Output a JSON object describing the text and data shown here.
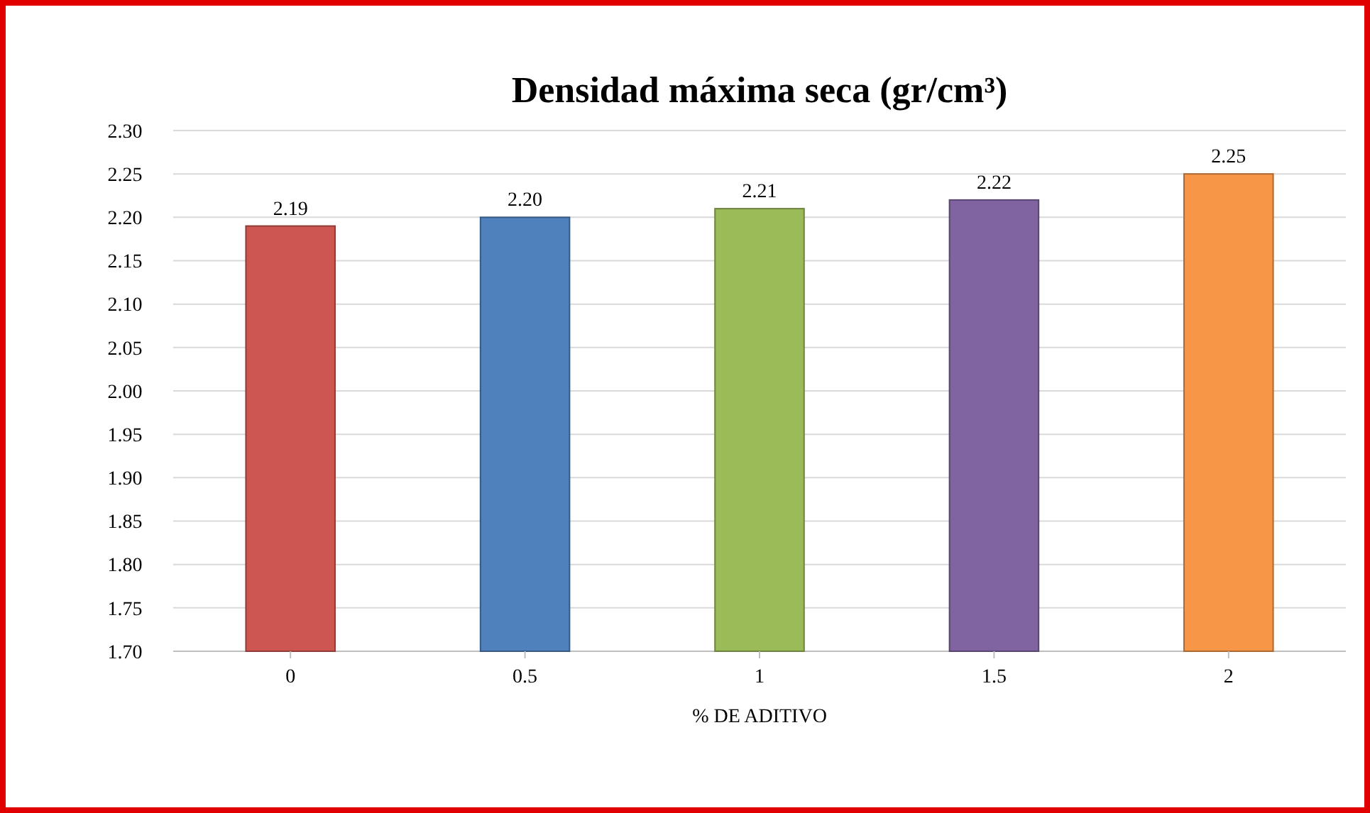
{
  "chart_data": {
    "type": "bar",
    "title": "Densidad máxima seca (gr/cm³)",
    "xlabel": "% DE ADITIVO",
    "categories": [
      "0",
      "0.5",
      "1",
      "1.5",
      "2"
    ],
    "values": [
      2.19,
      2.2,
      2.21,
      2.22,
      2.25
    ],
    "colors": [
      "#cd5651",
      "#4f81bd",
      "#9bbb59",
      "#8064a2",
      "#f79646"
    ],
    "value_labels": [
      "2.19",
      "2.20",
      "2.21",
      "2.22",
      "2.25"
    ],
    "ylim": [
      1.7,
      2.3
    ],
    "yticks": [
      {
        "value": 1.7,
        "label": "1.70"
      },
      {
        "value": 1.75,
        "label": "1.75"
      },
      {
        "value": 1.8,
        "label": "1.80"
      },
      {
        "value": 1.85,
        "label": "1.85"
      },
      {
        "value": 1.9,
        "label": "1.90"
      },
      {
        "value": 1.95,
        "label": "1.95"
      },
      {
        "value": 2.0,
        "label": "2.00"
      },
      {
        "value": 2.05,
        "label": "2.05"
      },
      {
        "value": 2.1,
        "label": "2.10"
      },
      {
        "value": 2.15,
        "label": "2.15"
      },
      {
        "value": 2.2,
        "label": "2.20"
      },
      {
        "value": 2.25,
        "label": "2.25"
      },
      {
        "value": 2.3,
        "label": "2.30"
      }
    ],
    "grid": "y"
  }
}
